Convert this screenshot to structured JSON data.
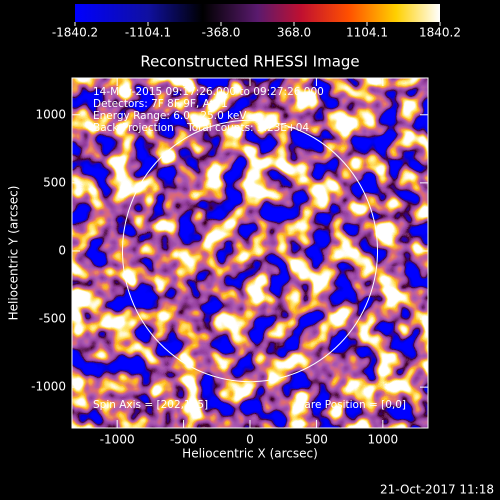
{
  "chart_data": {
    "type": "heatmap",
    "title": "Reconstructed RHESSI Image",
    "x_label": "Heliocentric X (arcsec)",
    "y_label": "Heliocentric Y (arcsec)",
    "xlim": [
      -1340,
      1340
    ],
    "xticks": [
      -1000,
      -500,
      0,
      500,
      1000
    ],
    "ylim": [
      -1300,
      1270
    ],
    "yticks": [
      -1000,
      -500,
      0,
      500,
      1000
    ],
    "clim": [
      -1840.2,
      1840.2
    ],
    "colorbar_ticks": [
      -1840.2,
      -1104.1,
      {
        "value": -368,
        "label": "-368.0"
      },
      {
        "value": 368,
        "label": "368.0"
      },
      1104.1,
      1840.2
    ],
    "limb_radius": 960,
    "annotations": [
      "14-May-2015 09:17:26.000 to 09:27:26.000",
      "Detectors: 7F 8F 9F, Att 1",
      "Energy Range: 6.0 - 25.0 keV",
      "Back Projection    Total counts: 3.23E+04"
    ],
    "spin_axis": "Spin Axis = [202,145]",
    "flare_position": "Flare Position = [0,0]",
    "timestamp": "21-Oct-2017 11:18"
  }
}
